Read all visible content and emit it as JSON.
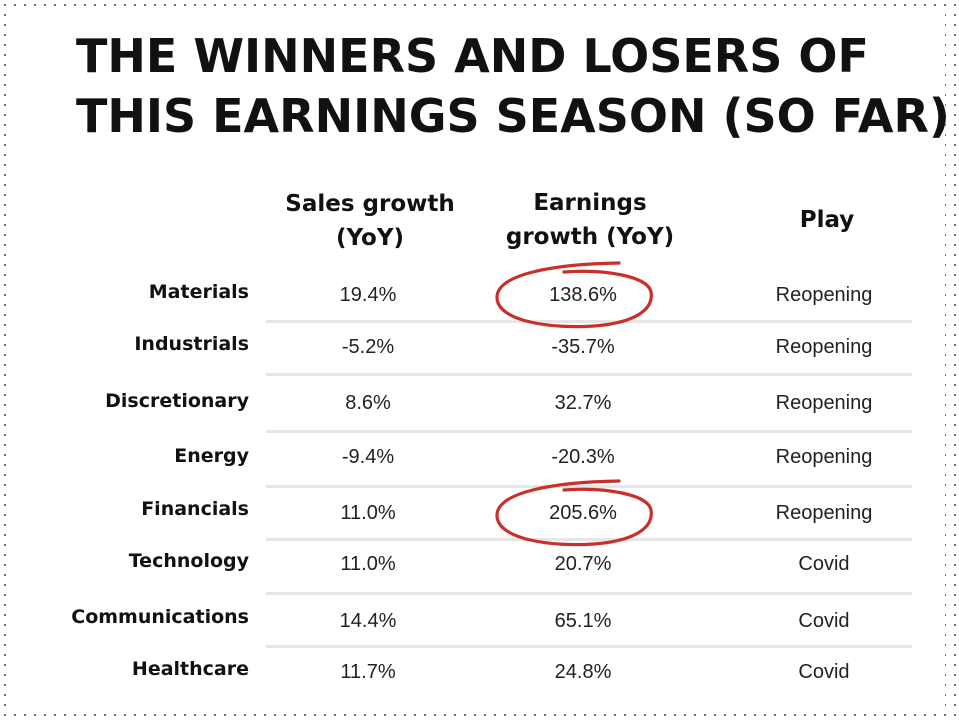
{
  "title": {
    "line1": "THE WINNERS AND LOSERS OF",
    "line2": "THIS EARNINGS SEASON (SO FAR)"
  },
  "headers": {
    "sales": [
      "Sales growth",
      "(YoY)"
    ],
    "earnings": [
      "Earnings",
      "growth (YoY)"
    ],
    "play": [
      "Play"
    ]
  },
  "rows": [
    {
      "sector": "Materials",
      "sales": "19.4%",
      "earnings": "138.6%",
      "play": "Reopening",
      "highlight": true
    },
    {
      "sector": "Industrials",
      "sales": "-5.2%",
      "earnings": "-35.7%",
      "play": "Reopening",
      "highlight": false
    },
    {
      "sector": "Discretionary",
      "sales": "8.6%",
      "earnings": "32.7%",
      "play": "Reopening",
      "highlight": false
    },
    {
      "sector": "Energy",
      "sales": "-9.4%",
      "earnings": "-20.3%",
      "play": "Reopening",
      "highlight": false
    },
    {
      "sector": "Financials",
      "sales": "11.0%",
      "earnings": "205.6%",
      "play": "Reopening",
      "highlight": true
    },
    {
      "sector": "Technology",
      "sales": "11.0%",
      "earnings": "20.7%",
      "play": "Covid",
      "highlight": false
    },
    {
      "sector": "Communications",
      "sales": "14.4%",
      "earnings": "65.1%",
      "play": "Covid",
      "highlight": false
    },
    {
      "sector": "Healthcare",
      "sales": "11.7%",
      "earnings": "24.8%",
      "play": "Covid",
      "highlight": false
    }
  ],
  "colors": {
    "highlight_circle": "#c9302c",
    "divider": "#e6e6e6",
    "text": "#111111"
  }
}
